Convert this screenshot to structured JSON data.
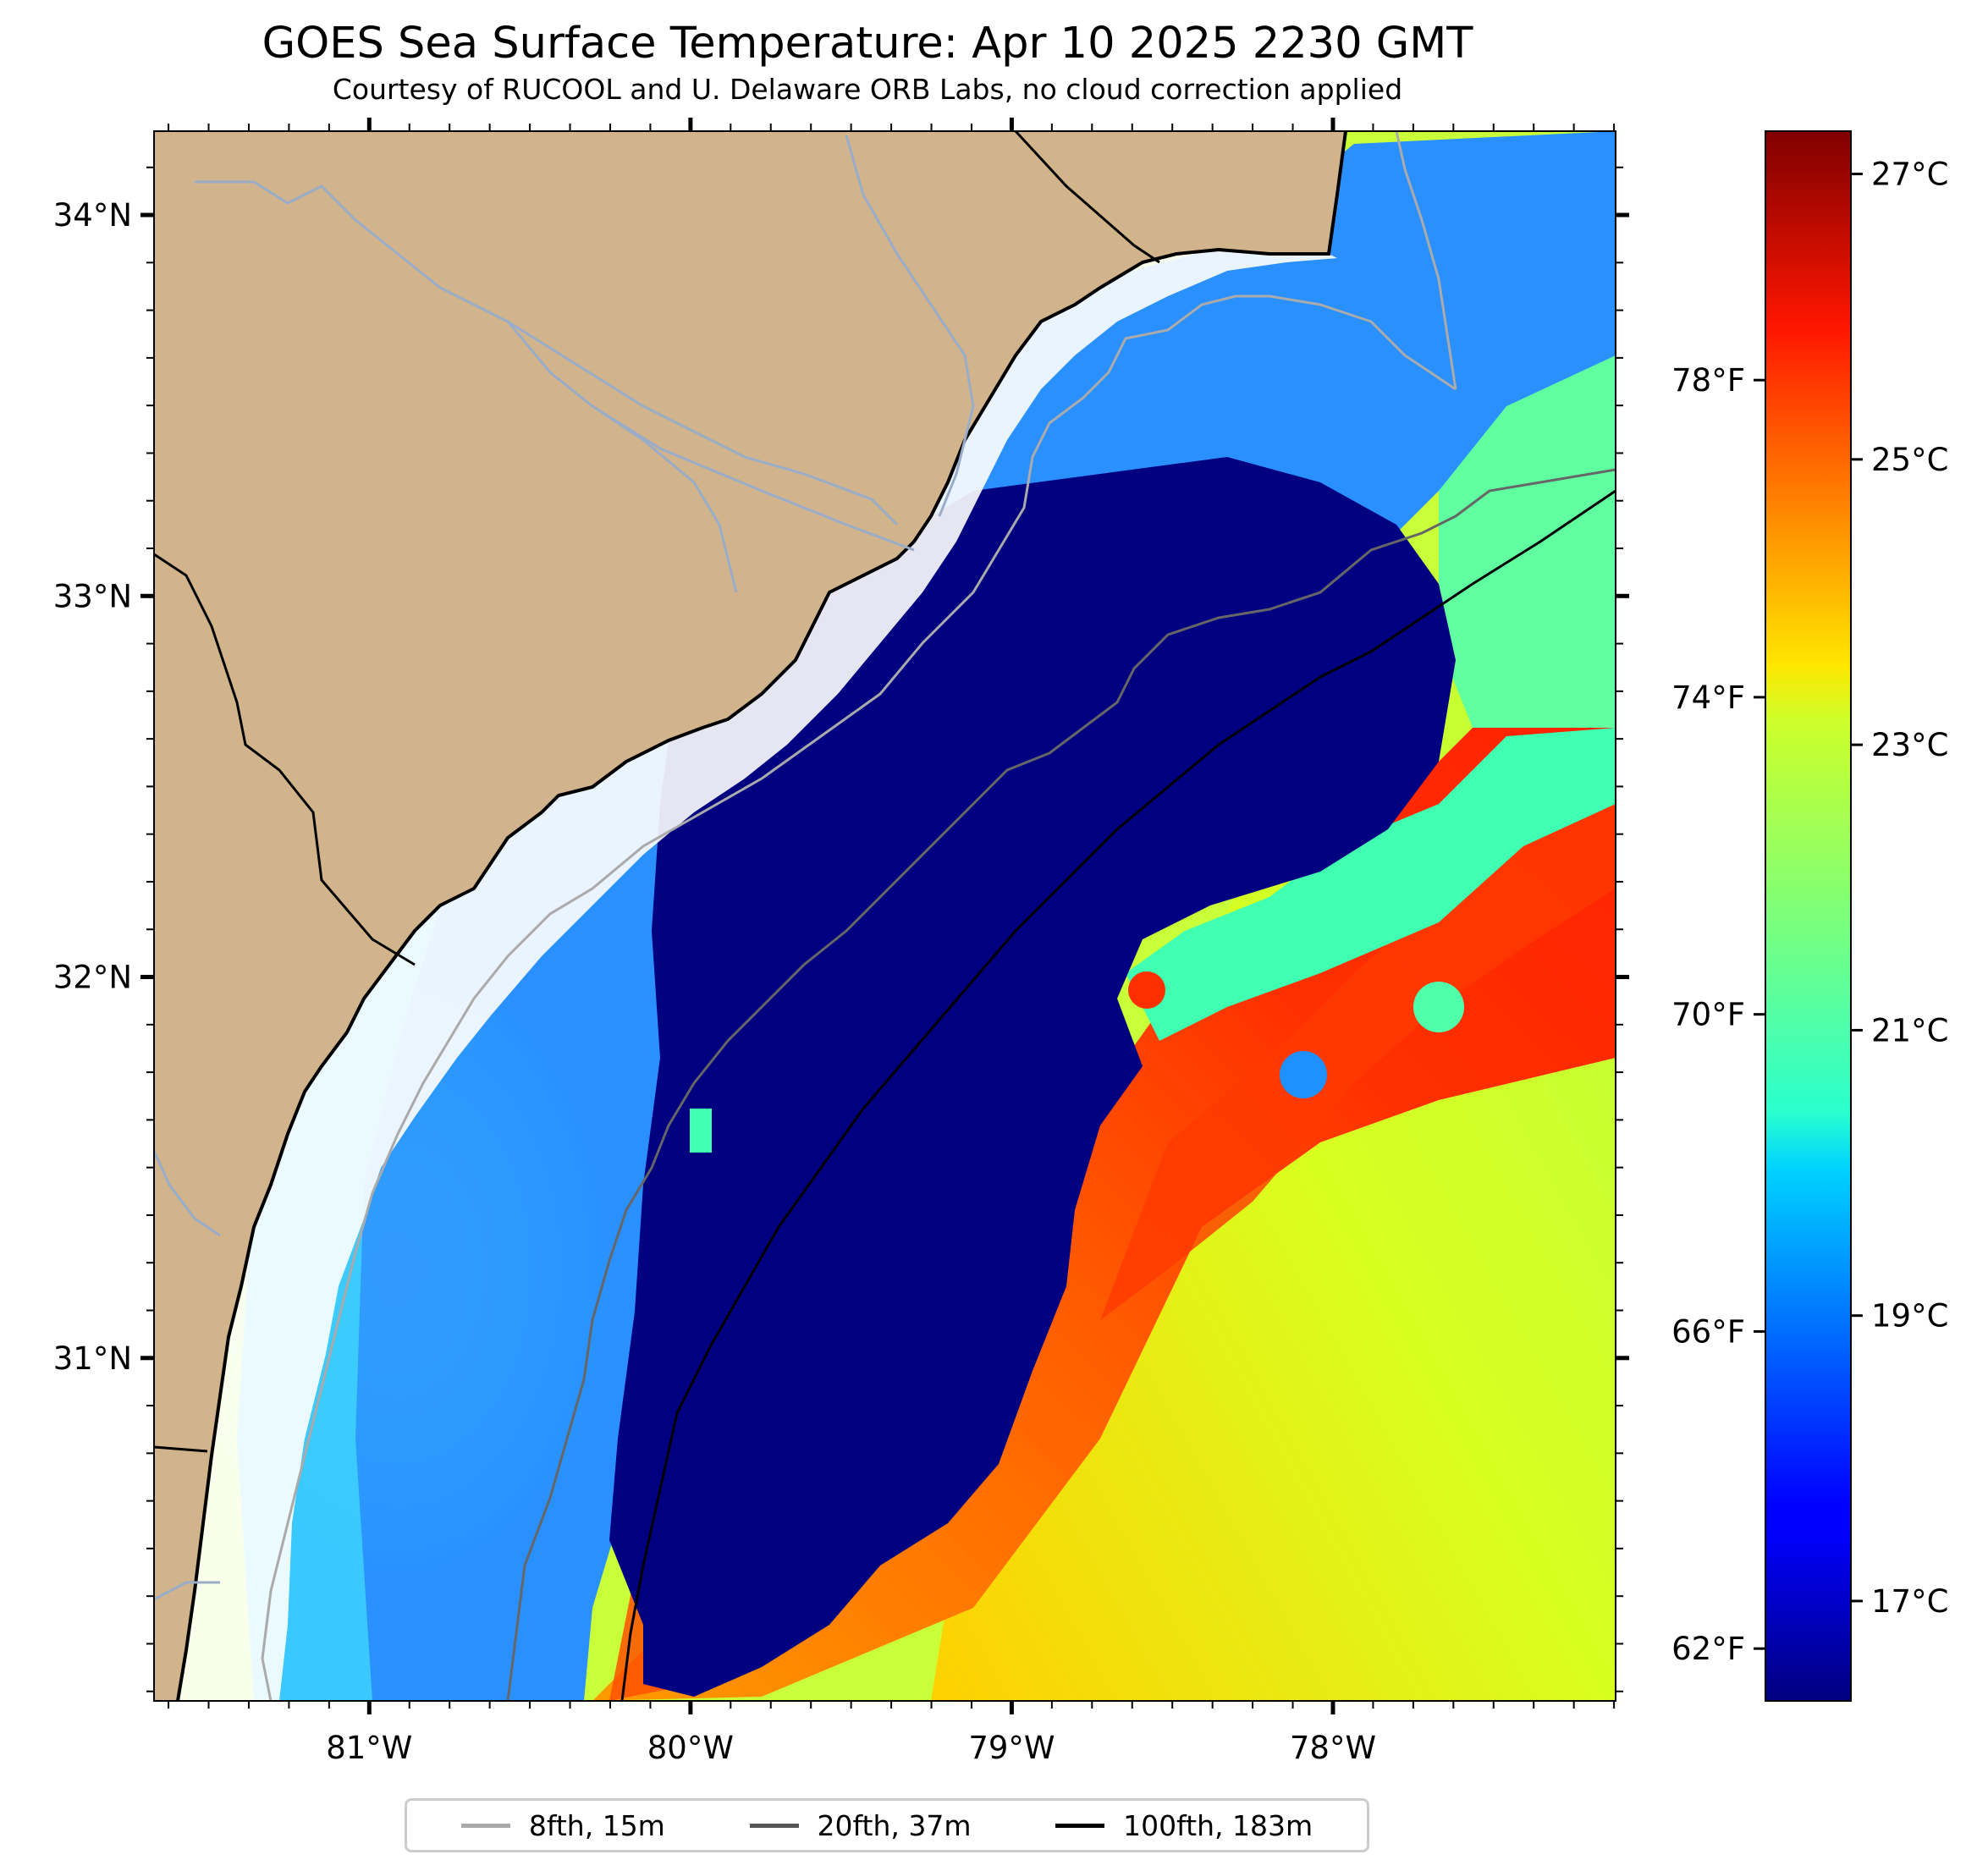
{
  "title": "GOES Sea Surface Temperature: Apr 10 2025 2230 GMT",
  "subtitle": "Courtesy of RUCOOL and U. Delaware ORB Labs, no cloud correction applied",
  "map": {
    "lon_range": [
      -81.67,
      -77.12
    ],
    "lat_range": [
      30.1,
      34.22
    ],
    "lon_ticks": [
      "81°W",
      "80°W",
      "79°W",
      "78°W"
    ],
    "lat_ticks": [
      "34°N",
      "33°N",
      "32°N",
      "31°N"
    ],
    "land_color": "#d2b48c",
    "river_color": "#99acc8",
    "coast_color": "#000000"
  },
  "colorbar": {
    "colormap": "jet",
    "range_celsius": [
      16.3,
      27.3
    ],
    "celsius_ticks": [
      "27°C",
      "25°C",
      "23°C",
      "21°C",
      "19°C",
      "17°C"
    ],
    "fahrenheit_ticks": [
      "78°F",
      "74°F",
      "70°F",
      "66°F",
      "62°F"
    ]
  },
  "legend": [
    {
      "label": "8fth, 15m",
      "color": "#aaaaaa"
    },
    {
      "label": "20fth, 37m",
      "color": "#555555"
    },
    {
      "label": "100fth, 183m",
      "color": "#000000"
    }
  ]
}
